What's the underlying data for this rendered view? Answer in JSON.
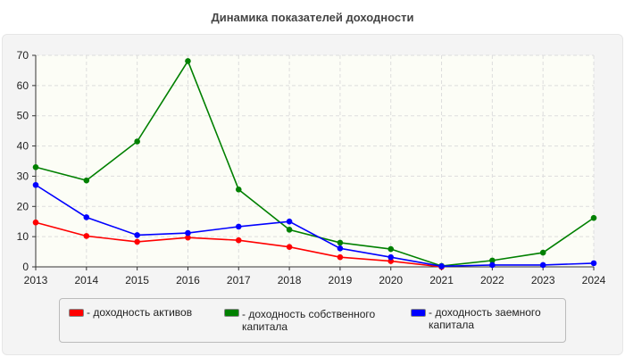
{
  "chart_data": {
    "type": "line",
    "title": "Динамика показателей доходности",
    "xlabel": "",
    "ylabel": "",
    "categories": [
      "2013",
      "2014",
      "2015",
      "2016",
      "2017",
      "2018",
      "2019",
      "2020",
      "2021",
      "2022",
      "2023",
      "2024"
    ],
    "ylim": [
      0,
      70
    ],
    "yticks": [
      0,
      10,
      20,
      30,
      40,
      50,
      60,
      70
    ],
    "grid": true,
    "legend_position": "bottom",
    "series": [
      {
        "name": "- доходность активов",
        "color": "#ff0000",
        "values": [
          14.7,
          10.2,
          8.3,
          9.7,
          8.8,
          6.6,
          3.2,
          1.9,
          0,
          null,
          null,
          null
        ]
      },
      {
        "name": "- доходность собственного капитала",
        "color": "#008000",
        "values": [
          33.0,
          28.6,
          41.5,
          68.1,
          25.6,
          12.3,
          8.0,
          5.9,
          0.3,
          2.1,
          4.7,
          16.2
        ]
      },
      {
        "name": "- доходность заемного капитала",
        "color": "#0000ff",
        "values": [
          27.1,
          16.4,
          10.5,
          11.2,
          13.3,
          15.0,
          6.1,
          3.2,
          0.2,
          0.6,
          0.6,
          1.2
        ]
      }
    ]
  }
}
